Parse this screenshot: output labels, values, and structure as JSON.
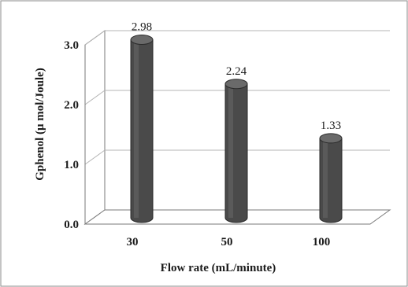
{
  "chart_data": {
    "type": "bar",
    "style": "3d-cylinder",
    "categories": [
      "30",
      "50",
      "100"
    ],
    "values": [
      2.98,
      2.24,
      1.33
    ],
    "data_labels": [
      "2.98",
      "2.24",
      "1.33"
    ],
    "y_ticks": [
      "0.0",
      "1.0",
      "2.0",
      "3.0"
    ],
    "y_tick_values": [
      0,
      1,
      2,
      3
    ],
    "xlabel": "Flow rate (mL/minute)",
    "ylabel": "Gphenol (μ mol/Joule)",
    "ylim": [
      0,
      3
    ],
    "grid": true,
    "legend": "none",
    "colors": {
      "bar": "#4a4a4a",
      "bar_dark": "#2b2b2b",
      "bar_light": "#6a6a6a",
      "grid": "#b5b5b5",
      "frame": "#7a7a7a"
    }
  }
}
